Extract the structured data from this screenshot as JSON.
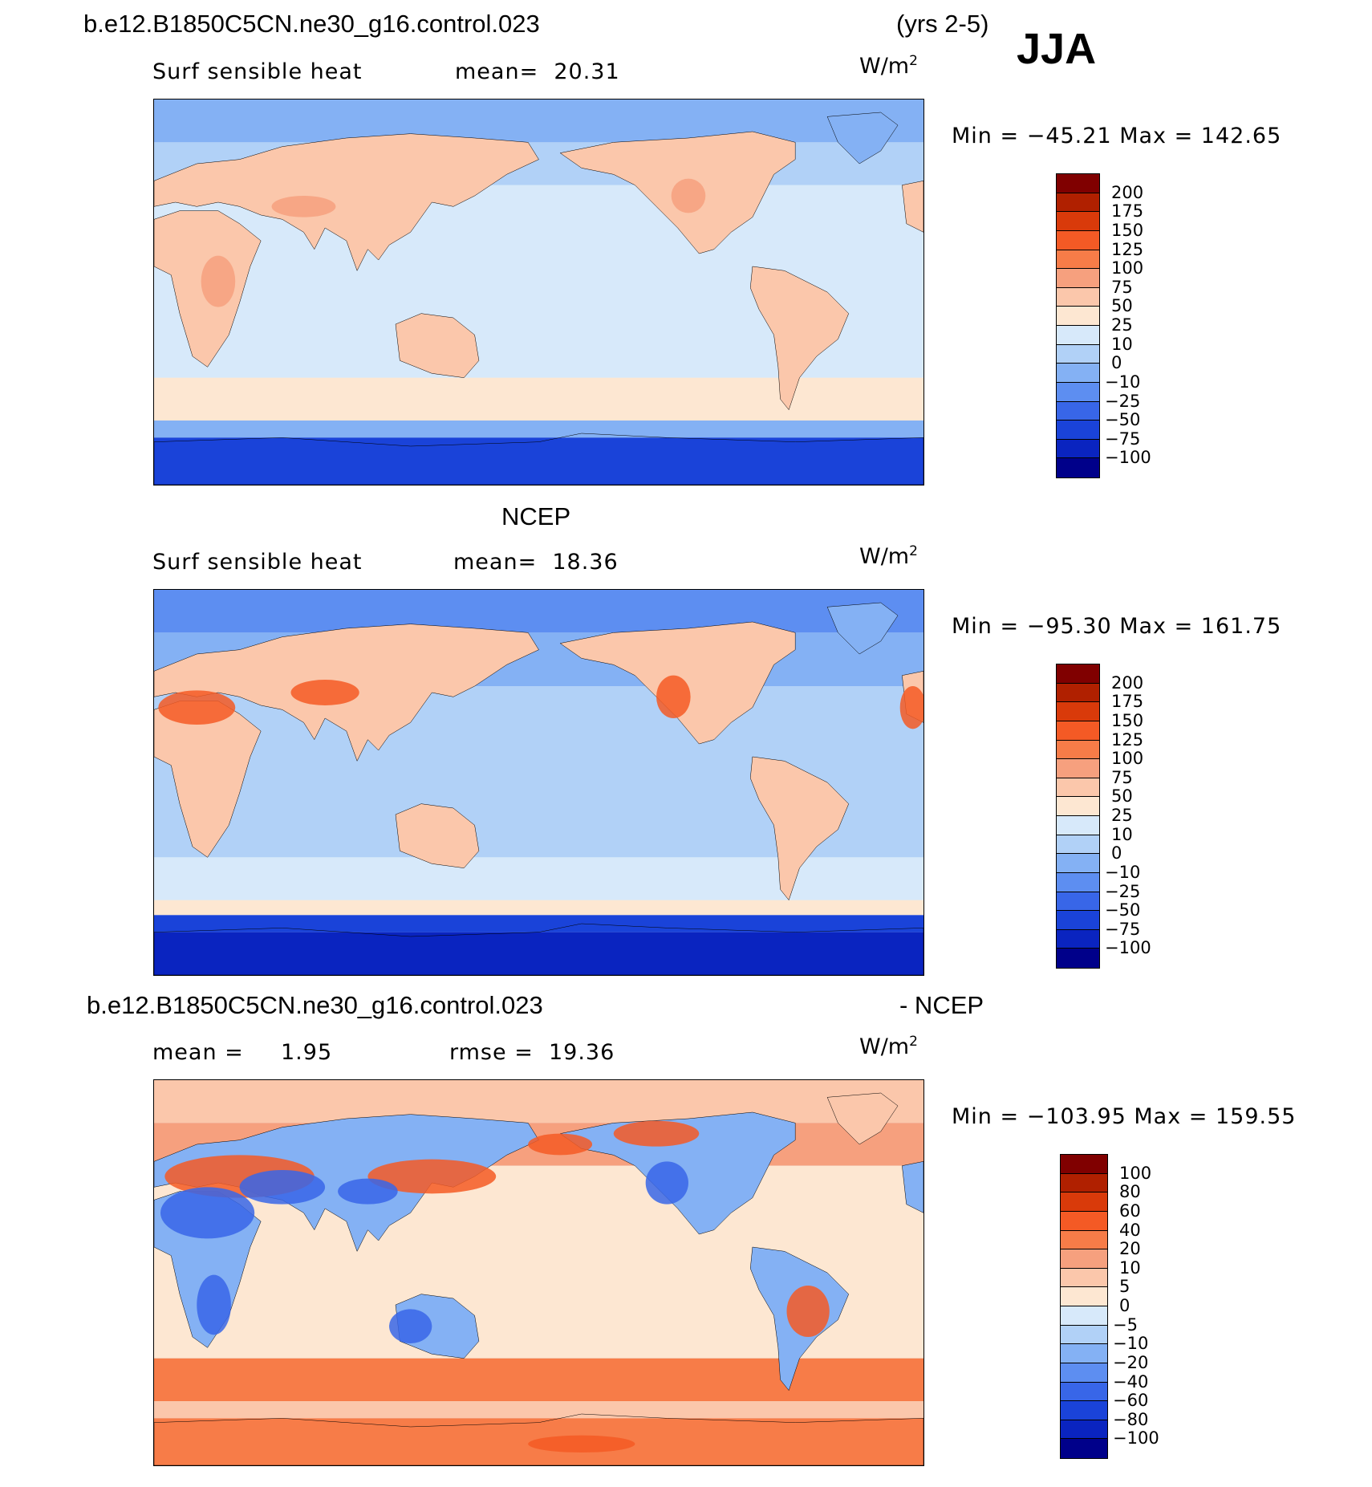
{
  "header": {
    "case_name": "b.e12.B1850C5CN.ne30_g16.control.023",
    "years": "(yrs 2-5)",
    "season": "JJA"
  },
  "panels": [
    {
      "id": "model",
      "heading": "",
      "field": "Surf sensible heat",
      "stat1": "mean=  20.31",
      "stat2": "",
      "units_base": "W/m",
      "units_exp": "2",
      "minmax": "Min = −45.21 Max = 142.65",
      "colorbar": {
        "ticks": [
          "200",
          "175",
          "150",
          "125",
          "100",
          "75",
          "50",
          "25",
          "10",
          "0",
          "−10",
          "−25",
          "−50",
          "−75",
          "−100"
        ],
        "colors": [
          "#800000",
          "#b02000",
          "#d93a0a",
          "#f45a25",
          "#f77c48",
          "#f6a07e",
          "#fbc7ab",
          "#fde7d2",
          "#d7e9fa",
          "#b1d1f7",
          "#84b1f4",
          "#5d8ef1",
          "#3866e8",
          "#1a43d9",
          "#0a24c0",
          "#00008a"
        ]
      },
      "map": {
        "theme": "model",
        "lat_bands": [
          {
            "lat": [
              70,
              90
            ],
            "color": "#84b1f4"
          },
          {
            "lat": [
              50,
              70
            ],
            "color": "#b1d1f7"
          },
          {
            "lat": [
              -40,
              50
            ],
            "color": "#d7e9fa"
          },
          {
            "lat": [
              -60,
              -40
            ],
            "color": "#fde7d2"
          },
          {
            "lat": [
              -68,
              -60
            ],
            "color": "#84b1f4"
          },
          {
            "lat": [
              -90,
              -68
            ],
            "color": "#1a43d9"
          }
        ],
        "land_color": "#fbc7ab",
        "land_hot_color": "#f6a07e"
      }
    },
    {
      "id": "obs",
      "heading": "NCEP",
      "field": "Surf sensible heat",
      "stat1": "mean=  18.36",
      "stat2": "",
      "units_base": "W/m",
      "units_exp": "2",
      "minmax": "Min = −95.30 Max = 161.75",
      "colorbar": {
        "ticks": [
          "200",
          "175",
          "150",
          "125",
          "100",
          "75",
          "50",
          "25",
          "10",
          "0",
          "−10",
          "−25",
          "−50",
          "−75",
          "−100"
        ],
        "colors": [
          "#800000",
          "#b02000",
          "#d93a0a",
          "#f45a25",
          "#f77c48",
          "#f6a07e",
          "#fbc7ab",
          "#fde7d2",
          "#d7e9fa",
          "#b1d1f7",
          "#84b1f4",
          "#5d8ef1",
          "#3866e8",
          "#1a43d9",
          "#0a24c0",
          "#00008a"
        ]
      },
      "map": {
        "theme": "obs",
        "lat_bands": [
          {
            "lat": [
              70,
              90
            ],
            "color": "#5d8ef1"
          },
          {
            "lat": [
              45,
              70
            ],
            "color": "#84b1f4"
          },
          {
            "lat": [
              -35,
              45
            ],
            "color": "#b1d1f7"
          },
          {
            "lat": [
              -55,
              -35
            ],
            "color": "#d7e9fa"
          },
          {
            "lat": [
              -62,
              -55
            ],
            "color": "#fde7d2"
          },
          {
            "lat": [
              -70,
              -62
            ],
            "color": "#1a43d9"
          },
          {
            "lat": [
              -90,
              -70
            ],
            "color": "#0a24c0"
          }
        ],
        "land_color": "#fbc7ab",
        "land_hot_color": "#f45a25"
      }
    },
    {
      "id": "diff",
      "heading": "b.e12.B1850C5CN.ne30_g16.control.023",
      "heading_right": "- NCEP",
      "field": "mean =",
      "stat1": "1.95",
      "stat2": "rmse =  19.36",
      "units_base": "W/m",
      "units_exp": "2",
      "minmax": "Min = −103.95 Max = 159.55",
      "colorbar": {
        "ticks": [
          "100",
          "80",
          "60",
          "40",
          "20",
          "10",
          "5",
          "0",
          "−5",
          "−10",
          "−20",
          "−40",
          "−60",
          "−80",
          "−100"
        ],
        "colors": [
          "#800000",
          "#b02000",
          "#d93a0a",
          "#f45a25",
          "#f77c48",
          "#f6a07e",
          "#fbc7ab",
          "#fde7d2",
          "#d7e9fa",
          "#b1d1f7",
          "#84b1f4",
          "#5d8ef1",
          "#3866e8",
          "#1a43d9",
          "#0a24c0",
          "#00008a"
        ]
      },
      "map": {
        "theme": "diff",
        "lat_bands": [
          {
            "lat": [
              70,
              90
            ],
            "color": "#fbc7ab"
          },
          {
            "lat": [
              50,
              70
            ],
            "color": "#f6a07e"
          },
          {
            "lat": [
              -40,
              50
            ],
            "color": "#fde7d2"
          },
          {
            "lat": [
              -60,
              -40
            ],
            "color": "#f77c48"
          },
          {
            "lat": [
              -68,
              -60
            ],
            "color": "#fbc7ab"
          },
          {
            "lat": [
              -90,
              -68
            ],
            "color": "#f77c48"
          }
        ],
        "land_color": "#84b1f4",
        "land_hot_color": "#f45a25"
      }
    }
  ]
}
